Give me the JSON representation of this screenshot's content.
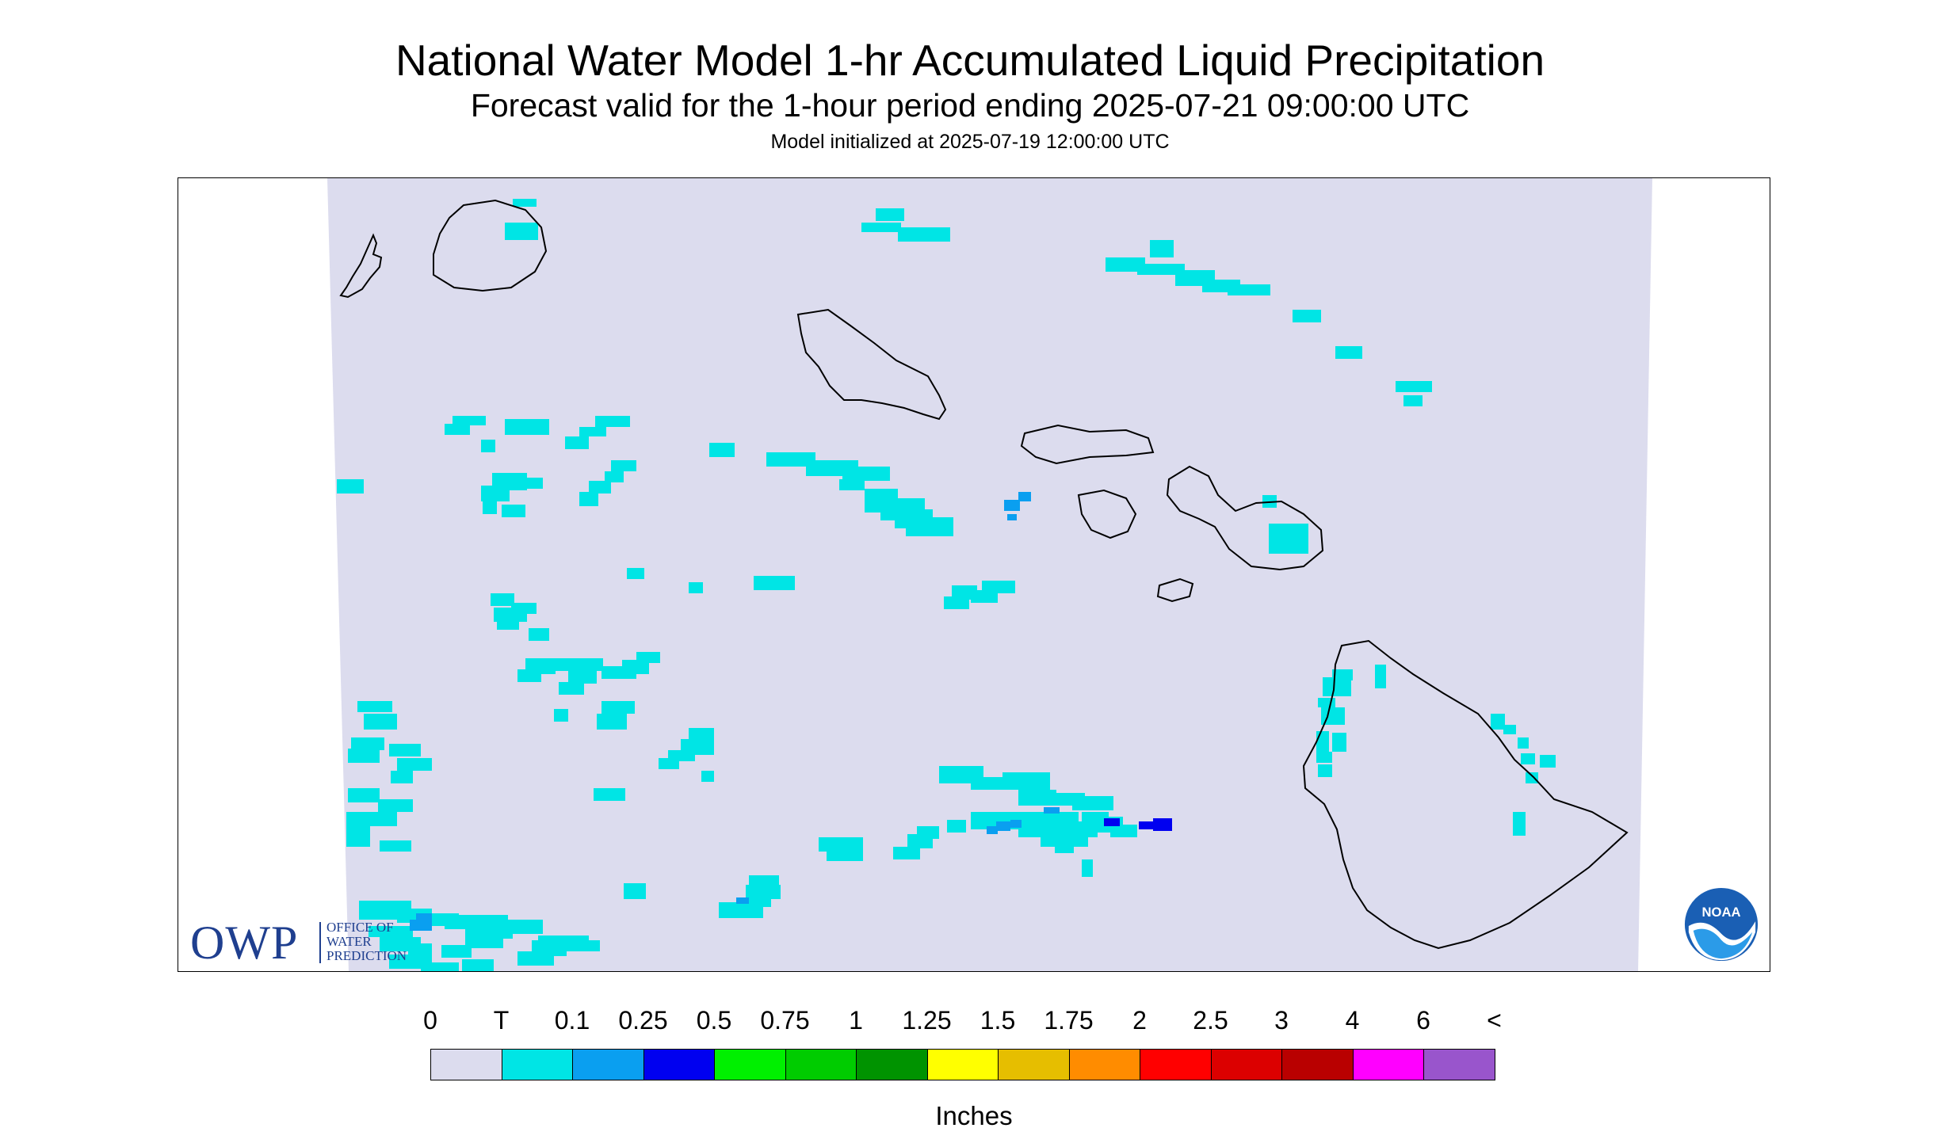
{
  "title": "National Water Model 1-hr Accumulated Liquid Precipitation",
  "subtitle": "Forecast valid for the 1-hour period ending 2025-07-21 09:00:00 UTC",
  "model_init": "Model initialized at 2025-07-19 12:00:00 UTC",
  "logos": {
    "owp_letters": "OWP",
    "owp_lines": [
      "OFFICE OF",
      "WATER",
      "PREDICTION"
    ],
    "noaa": "NOAA"
  },
  "legend": {
    "units": "Inches",
    "ticks": [
      "0",
      "T",
      "0.1",
      "0.25",
      "0.5",
      "0.75",
      "1",
      "1.25",
      "1.5",
      "1.75",
      "2",
      "2.5",
      "3",
      "4",
      "6",
      "<"
    ],
    "colors": [
      "#dcdcee",
      "#00e5e5",
      "#0a9ff0",
      "#0000f0",
      "#00f000",
      "#00cc00",
      "#009300",
      "#ffff00",
      "#e6be00",
      "#ff8c00",
      "#ff0000",
      "#dc0000",
      "#b90000",
      "#ff00ff",
      "#9955cc"
    ]
  },
  "map": {
    "domain_color": "#dcdcee",
    "coast_color": "#000000",
    "region": "Hawaiian Islands",
    "precip_bins": {
      "trace": "#00e5e5",
      "light": "#0a9ff0",
      "moderate": "#0000f0"
    }
  }
}
